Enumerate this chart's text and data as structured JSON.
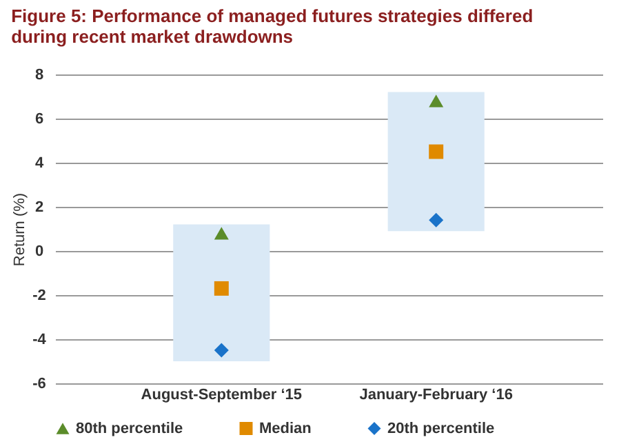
{
  "chart_data": {
    "type": "scatter",
    "title": "Figure 5: Performance of managed futures strategies differed during recent market drawdowns",
    "categories": [
      "August-September ‘15",
      "January-February ‘16"
    ],
    "ylabel": "Return (%)",
    "ylim": [
      -6,
      8
    ],
    "yticks": [
      -6,
      -4,
      -2,
      0,
      2,
      4,
      6,
      8
    ],
    "grid": "y",
    "legend": "bottom left",
    "series": [
      {
        "type": "bar",
        "color": "#dae9f6",
        "values": [
          6.2,
          6.3
        ],
        "base": [
          -5.0,
          0.9
        ]
      },
      {
        "name": "80th percentile",
        "type": "scatter",
        "marker": "triangle",
        "color": "#5b8c2a",
        "values": [
          0.8,
          6.8
        ]
      },
      {
        "name": "Median",
        "type": "scatter",
        "marker": "square",
        "color": "#e08a00",
        "values": [
          -1.7,
          4.5
        ]
      },
      {
        "name": "20th percentile",
        "type": "scatter",
        "marker": "diamond",
        "color": "#1a73c9",
        "values": [
          -4.5,
          1.4
        ]
      }
    ]
  }
}
